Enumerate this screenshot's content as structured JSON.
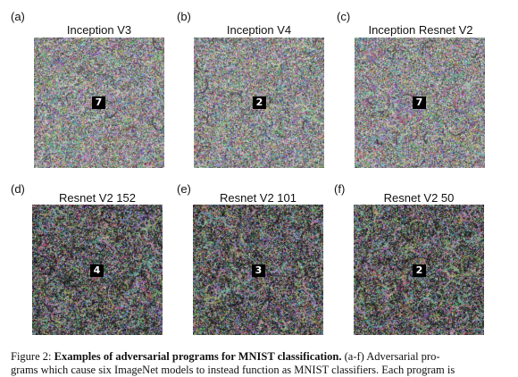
{
  "figure": {
    "panels": [
      {
        "letter": "(a)",
        "title": "Inception V3",
        "digit": "7",
        "seed": 11,
        "style": "light"
      },
      {
        "letter": "(b)",
        "title": "Inception V4",
        "digit": "2",
        "seed": 23,
        "style": "light"
      },
      {
        "letter": "(c)",
        "title": "Inception  Resnet V2",
        "digit": "7",
        "seed": 37,
        "style": "light"
      },
      {
        "letter": "(d)",
        "title": "Resnet V2 152",
        "digit": "4",
        "seed": 41,
        "style": "dark"
      },
      {
        "letter": "(e)",
        "title": "Resnet V2 101",
        "digit": "3",
        "seed": 53,
        "style": "dark"
      },
      {
        "letter": "(f)",
        "title": "Resnet V2 50",
        "digit": "2",
        "seed": 67,
        "style": "dark"
      }
    ],
    "caption": {
      "prefix": "Figure 2: ",
      "bold": "Examples of adversarial programs for MNIST classification.",
      "rest": " (a-f) Adversarial pro-",
      "line2": "grams which cause six ImageNet models to instead function as MNIST classifiers. Each program is"
    }
  }
}
